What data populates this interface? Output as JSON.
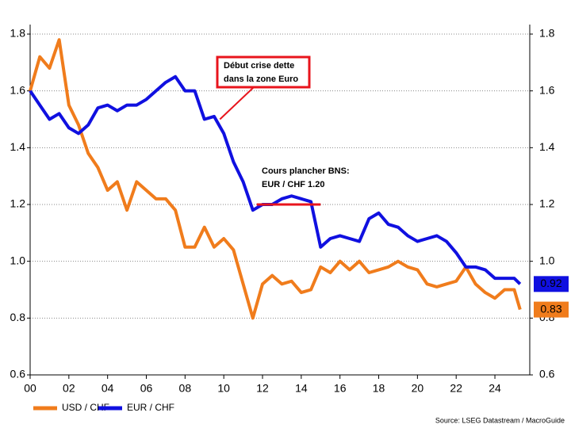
{
  "chart_data": {
    "type": "line",
    "x": [
      0,
      0.5,
      1,
      1.5,
      2,
      2.5,
      3,
      3.5,
      4,
      4.5,
      5,
      5.5,
      6,
      6.5,
      7,
      7.5,
      8,
      8.5,
      9,
      9.5,
      10,
      10.5,
      11,
      11.5,
      12,
      12.5,
      13,
      13.5,
      14,
      14.5,
      15,
      15.5,
      16,
      16.5,
      17,
      17.5,
      18,
      18.5,
      19,
      19.5,
      20,
      20.5,
      21,
      21.5,
      22,
      22.5,
      23,
      23.5,
      24,
      24.5,
      25,
      25.3
    ],
    "series": [
      {
        "name": "USD / CHF",
        "color": "#f07c1c",
        "values": [
          1.6,
          1.72,
          1.68,
          1.78,
          1.55,
          1.48,
          1.38,
          1.33,
          1.25,
          1.28,
          1.18,
          1.28,
          1.25,
          1.22,
          1.22,
          1.18,
          1.05,
          1.05,
          1.12,
          1.05,
          1.08,
          1.04,
          0.92,
          0.8,
          0.92,
          0.95,
          0.92,
          0.93,
          0.89,
          0.9,
          0.98,
          0.96,
          1.0,
          0.97,
          1.0,
          0.96,
          0.97,
          0.98,
          1.0,
          0.98,
          0.97,
          0.92,
          0.91,
          0.92,
          0.93,
          0.98,
          0.92,
          0.89,
          0.87,
          0.9,
          0.9,
          0.83
        ]
      },
      {
        "name": "EUR / CHF",
        "color": "#1010e0",
        "values": [
          1.6,
          1.55,
          1.5,
          1.52,
          1.47,
          1.45,
          1.48,
          1.54,
          1.55,
          1.53,
          1.55,
          1.55,
          1.57,
          1.6,
          1.63,
          1.65,
          1.6,
          1.6,
          1.5,
          1.51,
          1.45,
          1.35,
          1.28,
          1.18,
          1.2,
          1.2,
          1.22,
          1.23,
          1.22,
          1.21,
          1.05,
          1.08,
          1.09,
          1.08,
          1.07,
          1.15,
          1.17,
          1.13,
          1.12,
          1.09,
          1.07,
          1.08,
          1.09,
          1.07,
          1.03,
          0.98,
          0.98,
          0.97,
          0.94,
          0.94,
          0.94,
          0.92
        ]
      }
    ],
    "xlim": [
      0,
      25.8
    ],
    "xticks": [
      {
        "value": 0,
        "label": "00"
      },
      {
        "value": 2,
        "label": "02"
      },
      {
        "value": 4,
        "label": "04"
      },
      {
        "value": 6,
        "label": "06"
      },
      {
        "value": 8,
        "label": "08"
      },
      {
        "value": 10,
        "label": "10"
      },
      {
        "value": 12,
        "label": "12"
      },
      {
        "value": 14,
        "label": "14"
      },
      {
        "value": 16,
        "label": "16"
      },
      {
        "value": 18,
        "label": "18"
      },
      {
        "value": 20,
        "label": "20"
      },
      {
        "value": 22,
        "label": "22"
      },
      {
        "value": 24,
        "label": "24"
      }
    ],
    "ylim": [
      0.6,
      1.8
    ],
    "yticks": [
      {
        "value": 0.6,
        "label": "0.6"
      },
      {
        "value": 0.8,
        "label": "0.8"
      },
      {
        "value": 1.0,
        "label": "1.0"
      },
      {
        "value": 1.2,
        "label": "1.2"
      },
      {
        "value": 1.4,
        "label": "1.4"
      },
      {
        "value": 1.6,
        "label": "1.6"
      },
      {
        "value": 1.8,
        "label": "1.8"
      }
    ],
    "y2lim": [
      0.6,
      1.8
    ],
    "y2ticks": [
      {
        "value": 0.6,
        "label": "0.6"
      },
      {
        "value": 0.8,
        "label": "0.8"
      },
      {
        "value": 1.0,
        "label": "1.0"
      },
      {
        "value": 1.2,
        "label": "1.2"
      },
      {
        "value": 1.4,
        "label": "1.4"
      },
      {
        "value": 1.6,
        "label": "1.6"
      },
      {
        "value": 1.8,
        "label": "1.8"
      }
    ],
    "grid": true,
    "legend": "bottom-left",
    "annotations": [
      {
        "lines": [
          "Début crise dette",
          "dans la zone Euro"
        ],
        "x": 9.8,
        "y": 1.5
      },
      {
        "lines": [
          "Cours plancher BNS:",
          "EUR / CHF 1.20"
        ],
        "color": "#e8141c",
        "floor": 1.2,
        "x_start": 11.7,
        "x_end": 15
      }
    ],
    "source": "Source: LSEG Datastream / MacroGuide"
  }
}
